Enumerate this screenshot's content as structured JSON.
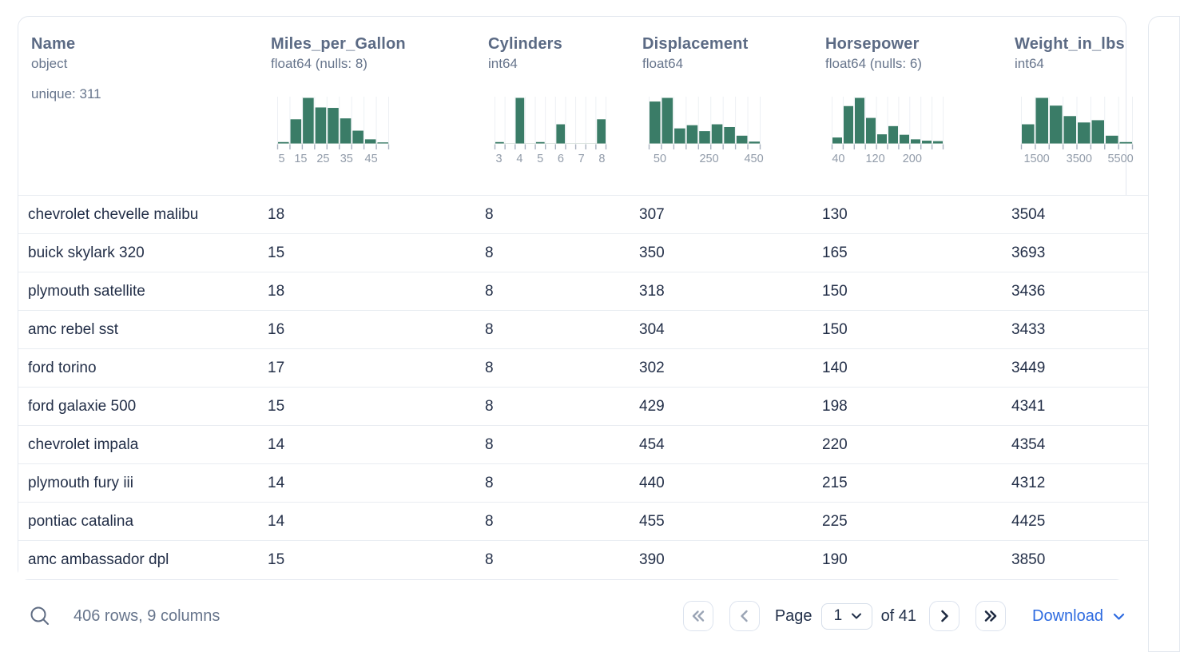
{
  "colors": {
    "histogram_bar": "#3a7c67",
    "accent_blue": "#2e6be0",
    "header_text": "#5b6a84",
    "muted_text": "#67758c",
    "row_text": "#232f48",
    "border": "#e3e8ef"
  },
  "icons": {
    "search": "magnifier",
    "first_page": "chevron-double-left",
    "prev_page": "chevron-left",
    "next_page": "chevron-right",
    "last_page": "chevron-double-right",
    "page_select_caret": "chevron-down",
    "download_caret": "chevron-down"
  },
  "table": {
    "columns": [
      {
        "name": "Name",
        "type": "object",
        "unique": "unique: 311",
        "histogram": null
      },
      {
        "name": "Miles_per_Gallon",
        "type": "float64 (nulls: 8)",
        "histogram": {
          "bars": [
            0.03,
            0.53,
            1.0,
            0.79,
            0.78,
            0.55,
            0.28,
            0.09,
            0.02
          ],
          "ticks": 10,
          "labels": [
            {
              "text": "5",
              "frac": 0.04
            },
            {
              "text": "15",
              "frac": 0.21
            },
            {
              "text": "25",
              "frac": 0.41
            },
            {
              "text": "35",
              "frac": 0.62
            },
            {
              "text": "45",
              "frac": 0.84
            }
          ]
        }
      },
      {
        "name": "Cylinders",
        "type": "int64",
        "histogram": {
          "bars": [
            0.03,
            0,
            1.0,
            0,
            0.03,
            0,
            0.42,
            0,
            0,
            0,
            0.53
          ],
          "ticks": 12,
          "labels": [
            {
              "text": "3",
              "frac": 0.04
            },
            {
              "text": "4",
              "frac": 0.224
            },
            {
              "text": "5",
              "frac": 0.408
            },
            {
              "text": "6",
              "frac": 0.592
            },
            {
              "text": "7",
              "frac": 0.776
            },
            {
              "text": "8",
              "frac": 0.96
            }
          ]
        }
      },
      {
        "name": "Displacement",
        "type": "float64",
        "histogram": {
          "bars": [
            0.92,
            1.0,
            0.33,
            0.4,
            0.27,
            0.42,
            0.36,
            0.17,
            0.04
          ],
          "ticks": 10,
          "labels": [
            {
              "text": "50",
              "frac": 0.1
            },
            {
              "text": "250",
              "frac": 0.54
            },
            {
              "text": "450",
              "frac": 0.94
            }
          ]
        }
      },
      {
        "name": "Horsepower",
        "type": "float64 (nulls: 6)",
        "histogram": {
          "bars": [
            0.13,
            0.82,
            1.0,
            0.56,
            0.2,
            0.38,
            0.19,
            0.09,
            0.06,
            0.05
          ],
          "ticks": 11,
          "labels": [
            {
              "text": "40",
              "frac": 0.06
            },
            {
              "text": "120",
              "frac": 0.39
            },
            {
              "text": "200",
              "frac": 0.72
            }
          ]
        }
      },
      {
        "name": "Weight_in_lbs",
        "type": "int64",
        "histogram": {
          "bars": [
            0.42,
            1.0,
            0.83,
            0.6,
            0.46,
            0.51,
            0.17,
            0.03
          ],
          "ticks": 9,
          "labels": [
            {
              "text": "1500",
              "frac": 0.14
            },
            {
              "text": "3500",
              "frac": 0.52
            },
            {
              "text": "5500",
              "frac": 0.89
            }
          ]
        }
      }
    ],
    "rows": [
      [
        "chevrolet chevelle malibu",
        "18",
        "8",
        "307",
        "130",
        "3504"
      ],
      [
        "buick skylark 320",
        "15",
        "8",
        "350",
        "165",
        "3693"
      ],
      [
        "plymouth satellite",
        "18",
        "8",
        "318",
        "150",
        "3436"
      ],
      [
        "amc rebel sst",
        "16",
        "8",
        "304",
        "150",
        "3433"
      ],
      [
        "ford torino",
        "17",
        "8",
        "302",
        "140",
        "3449"
      ],
      [
        "ford galaxie 500",
        "15",
        "8",
        "429",
        "198",
        "4341"
      ],
      [
        "chevrolet impala",
        "14",
        "8",
        "454",
        "220",
        "4354"
      ],
      [
        "plymouth fury iii",
        "14",
        "8",
        "440",
        "215",
        "4312"
      ],
      [
        "pontiac catalina",
        "14",
        "8",
        "455",
        "225",
        "4425"
      ],
      [
        "amc ambassador dpl",
        "15",
        "8",
        "390",
        "190",
        "3850"
      ]
    ]
  },
  "footer": {
    "summary": "406 rows, 9 columns",
    "page_label": "Page",
    "page_value": "1",
    "of_label": "of 41",
    "download_label": "Download"
  }
}
